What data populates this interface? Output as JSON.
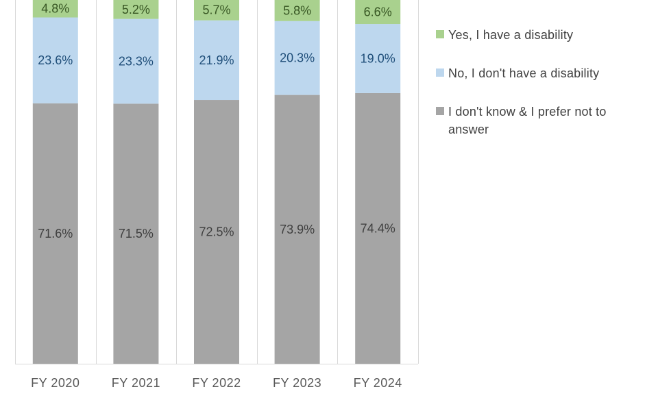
{
  "chart_data": {
    "type": "bar",
    "stacked": true,
    "categories": [
      "FY 2020",
      "FY 2021",
      "FY 2022",
      "FY 2023",
      "FY 2024"
    ],
    "series": [
      {
        "name": "I don't know & I prefer not to answer",
        "color": "#a5a5a5",
        "label_color": "#3f3f3f",
        "values": [
          71.6,
          71.5,
          72.5,
          73.9,
          74.4
        ],
        "labels": [
          "71.6%",
          "71.5%",
          "72.5%",
          "73.9%",
          "74.4%"
        ]
      },
      {
        "name": "No, I don't have a disability",
        "color": "#bdd7ee",
        "label_color": "#1f4e79",
        "values": [
          23.6,
          23.3,
          21.9,
          20.3,
          19.0
        ],
        "labels": [
          "23.6%",
          "23.3%",
          "21.9%",
          "20.3%",
          "19.0%"
        ]
      },
      {
        "name": "Yes, I have a disability",
        "color": "#a9d18e",
        "label_color": "#375623",
        "values": [
          4.8,
          5.2,
          5.7,
          5.8,
          6.6
        ],
        "labels": [
          "4.8%",
          "5.2%",
          "5.7%",
          "5.8%",
          "6.6%"
        ]
      }
    ],
    "ylim": [
      0,
      100
    ],
    "title": "",
    "xlabel": "",
    "ylabel": "",
    "legend_position": "right"
  },
  "legend": [
    {
      "label": "Yes, I have a disability",
      "color": "#a9d18e"
    },
    {
      "label": "No, I don't have a disability",
      "color": "#bdd7ee"
    },
    {
      "label": "I don't know & I prefer not to answer",
      "color": "#a5a5a5"
    }
  ]
}
